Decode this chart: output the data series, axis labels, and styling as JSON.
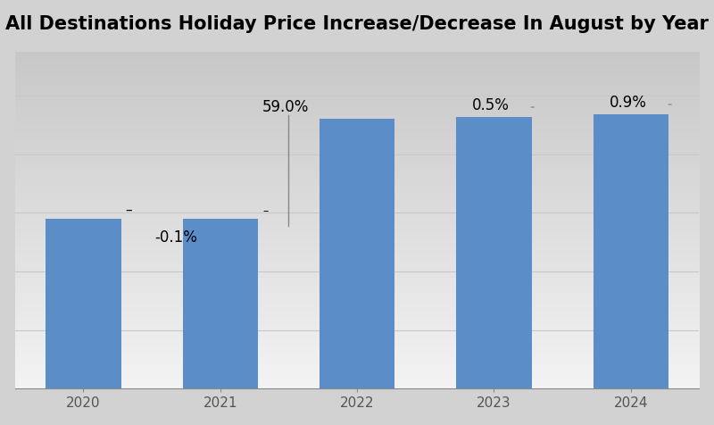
{
  "title": "All Destinations Holiday Price Increase/Decrease In August by Year",
  "categories": [
    "2020",
    "2021",
    "2022",
    "2023",
    "2024"
  ],
  "values": [
    58.0,
    57.94,
    92.2,
    92.66,
    93.5
  ],
  "bar_color": "#5B8DC8",
  "title_fontsize": 15,
  "tick_fontsize": 11,
  "annotation_fontsize": 12,
  "ylim_max": 115,
  "gridline_color": "#c8c8c8",
  "fig_bg": "#d2d2d2",
  "ax_bg_light": "#e8e8e8",
  "ax_bg_dark": "#c0c0c0"
}
